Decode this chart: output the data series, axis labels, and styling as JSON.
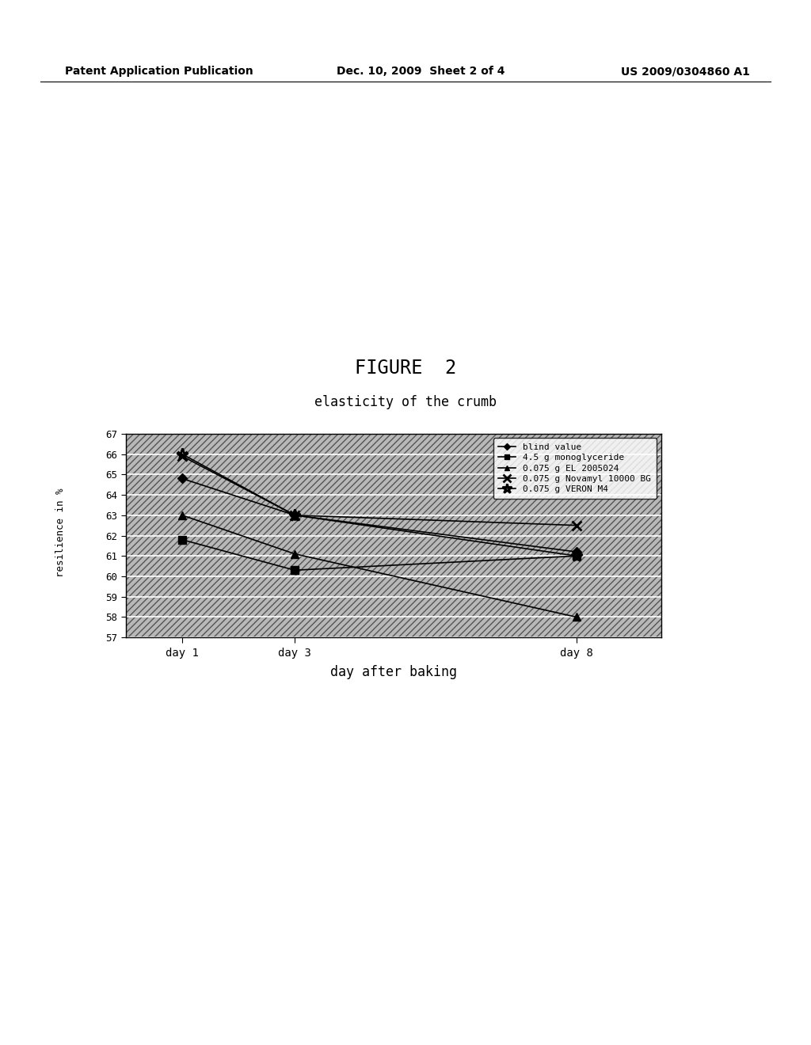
{
  "figure_title": "FIGURE  2",
  "chart_subtitle": "elasticity of the crumb",
  "xlabel": "day after baking",
  "ylabel_lines": [
    "r",
    "e",
    "s",
    "i",
    "l",
    "i",
    "e",
    "n",
    "c",
    "e",
    " ",
    "i",
    "n",
    " ",
    "%"
  ],
  "xtick_labels": [
    "day 1",
    "day 3",
    "day 8"
  ],
  "x_values": [
    1,
    3,
    8
  ],
  "ylim": [
    57,
    67
  ],
  "yticks": [
    57,
    58,
    59,
    60,
    61,
    62,
    63,
    64,
    65,
    66,
    67
  ],
  "header_left": "Patent Application Publication",
  "header_center": "Dec. 10, 2009  Sheet 2 of 4",
  "header_right": "US 2009/0304860 A1",
  "series": [
    {
      "label": "blind value",
      "values": [
        64.8,
        63.0,
        61.2
      ],
      "marker": "D",
      "markersize": 6
    },
    {
      "label": "4.5 g monoglyceride",
      "values": [
        61.8,
        60.3,
        61.0
      ],
      "marker": "s",
      "markersize": 7
    },
    {
      "label": "0.075 g EL 2005024",
      "values": [
        63.0,
        61.1,
        58.0
      ],
      "marker": "^",
      "markersize": 7
    },
    {
      "label": "0.075 g Novamyl 10000 BG",
      "values": [
        65.9,
        63.0,
        62.5
      ],
      "marker": "x",
      "markersize": 9
    },
    {
      "label": "0.075 g VERON M4",
      "values": [
        66.0,
        63.0,
        61.0
      ],
      "marker": "*",
      "markersize": 11
    }
  ],
  "background_color": "#ffffff",
  "plot_bg_color": "#b8b8b8",
  "hatch_pattern": "////",
  "grid_line_color": "#ffffff"
}
